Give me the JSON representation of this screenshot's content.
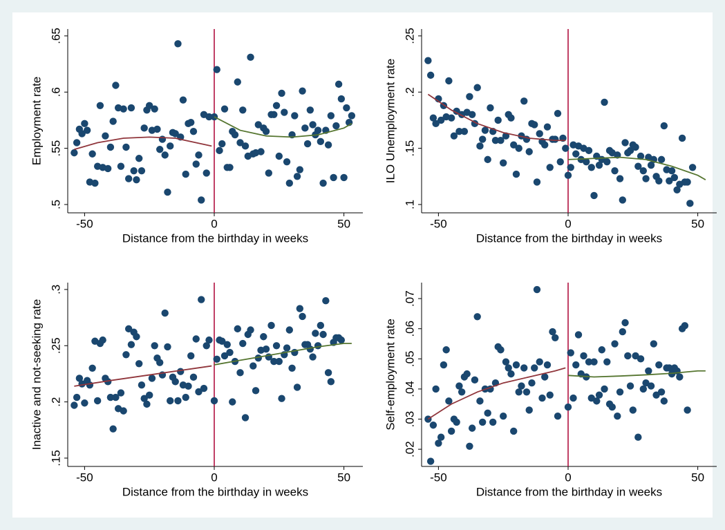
{
  "chart_data": [
    {
      "type": "scatter",
      "x_label": "Distance from the birthday in weeks",
      "y_label": "Employment rate",
      "xlim": [
        -56.5,
        57.3
      ],
      "ylim": [
        0.4926,
        0.6561
      ],
      "xticks": [
        -50,
        0,
        50
      ],
      "yticks": [
        {
          "value": 0.5,
          "label": ".5"
        },
        {
          "value": 0.55,
          "label": ".55"
        },
        {
          "value": 0.6,
          "label": ".6"
        },
        {
          "value": 0.65,
          "label": ".65"
        }
      ],
      "color": "#1a476f",
      "vline": 0,
      "vline_color": "#b0103f",
      "x": [
        -54,
        -53,
        -52,
        -51,
        -50,
        -49,
        -48,
        -47,
        -46,
        -45,
        -44,
        -43,
        -42,
        -41,
        -40,
        -39,
        -38,
        -37,
        -36,
        -35,
        -34,
        -33,
        -32,
        -31,
        -30,
        -29,
        -28,
        -27,
        -26,
        -25,
        -24,
        -23,
        -22,
        -21,
        -20,
        -19,
        -18,
        -17,
        -16,
        -15,
        -14,
        -13,
        -12,
        -11,
        -10,
        -9,
        -8,
        -7,
        -6,
        -5,
        -4,
        -3,
        -2,
        0,
        1,
        2,
        3,
        4,
        5,
        6,
        7,
        8,
        9,
        10,
        11,
        12,
        13,
        14,
        15,
        16,
        17,
        18,
        19,
        20,
        21,
        22,
        23,
        24,
        25,
        26,
        27,
        28,
        29,
        30,
        31,
        32,
        33,
        34,
        35,
        36,
        37,
        38,
        39,
        40,
        41,
        42,
        43,
        44,
        45,
        46,
        47,
        48,
        49,
        50,
        51,
        52,
        53
      ],
      "values": [
        0.546,
        0.555,
        0.567,
        0.563,
        0.572,
        0.566,
        0.52,
        0.545,
        0.519,
        0.534,
        0.588,
        0.533,
        0.561,
        0.532,
        0.551,
        0.574,
        0.606,
        0.586,
        0.534,
        0.585,
        0.551,
        0.523,
        0.586,
        0.53,
        0.522,
        0.541,
        0.53,
        0.568,
        0.584,
        0.588,
        0.566,
        0.585,
        0.567,
        0.549,
        0.558,
        0.544,
        0.511,
        0.552,
        0.564,
        0.563,
        0.643,
        0.56,
        0.593,
        0.527,
        0.572,
        0.573,
        0.565,
        0.536,
        0.544,
        0.504,
        0.58,
        0.528,
        0.578,
        0.578,
        0.62,
        0.548,
        0.554,
        0.585,
        0.533,
        0.533,
        0.565,
        0.562,
        0.609,
        0.555,
        0.584,
        0.552,
        0.543,
        0.631,
        0.545,
        0.546,
        0.571,
        0.547,
        0.568,
        0.565,
        0.528,
        0.58,
        0.58,
        0.588,
        0.543,
        0.599,
        0.582,
        0.538,
        0.519,
        0.562,
        0.579,
        0.525,
        0.531,
        0.601,
        0.568,
        0.554,
        0.584,
        0.571,
        0.562,
        0.566,
        0.556,
        0.519,
        0.566,
        0.553,
        0.579,
        0.524,
        0.57,
        0.607,
        0.594,
        0.524,
        0.586,
        0.573,
        0.579
      ],
      "fits": [
        {
          "color": "#90353b",
          "x": [
            -54,
            -45,
            -35,
            -25,
            -15,
            -5,
            -1
          ],
          "values": [
            0.549,
            0.555,
            0.559,
            0.56,
            0.559,
            0.554,
            0.552
          ]
        },
        {
          "color": "#55752f",
          "x": [
            0,
            10,
            20,
            30,
            40,
            50,
            53
          ],
          "values": [
            0.578,
            0.566,
            0.561,
            0.56,
            0.562,
            0.568,
            0.572
          ]
        }
      ]
    },
    {
      "type": "scatter",
      "x_label": "Distance from the birthday in weeks",
      "y_label": "ILO Unemployment rate",
      "xlim": [
        -56.5,
        57.3
      ],
      "ylim": [
        0.0926,
        0.2561
      ],
      "xticks": [
        -50,
        0,
        50
      ],
      "yticks": [
        {
          "value": 0.1,
          "label": ".1"
        },
        {
          "value": 0.15,
          "label": ".15"
        },
        {
          "value": 0.2,
          "label": ".2"
        },
        {
          "value": 0.25,
          "label": ".25"
        }
      ],
      "color": "#1a476f",
      "vline": 0,
      "vline_color": "#b0103f",
      "x": [
        -54,
        -53,
        -52,
        -51,
        -50,
        -49,
        -48,
        -47,
        -46,
        -45,
        -44,
        -43,
        -42,
        -41,
        -40,
        -39,
        -38,
        -37,
        -36,
        -35,
        -34,
        -33,
        -32,
        -31,
        -30,
        -29,
        -28,
        -27,
        -26,
        -25,
        -24,
        -23,
        -22,
        -21,
        -20,
        -19,
        -18,
        -17,
        -16,
        -15,
        -14,
        -13,
        -12,
        -11,
        -10,
        -9,
        -8,
        -7,
        -6,
        -5,
        -4,
        -3,
        -2,
        -1,
        0,
        1,
        2,
        3,
        4,
        5,
        6,
        7,
        8,
        9,
        10,
        11,
        12,
        13,
        14,
        15,
        16,
        17,
        18,
        19,
        20,
        21,
        22,
        23,
        24,
        25,
        26,
        27,
        28,
        29,
        30,
        31,
        32,
        33,
        34,
        35,
        36,
        37,
        38,
        39,
        40,
        41,
        42,
        43,
        44,
        45,
        46,
        47,
        48
      ],
      "values": [
        0.228,
        0.215,
        0.177,
        0.172,
        0.194,
        0.175,
        0.188,
        0.178,
        0.21,
        0.177,
        0.161,
        0.183,
        0.165,
        0.18,
        0.165,
        0.182,
        0.196,
        0.18,
        0.172,
        0.204,
        0.152,
        0.158,
        0.166,
        0.14,
        0.186,
        0.165,
        0.157,
        0.175,
        0.157,
        0.137,
        0.161,
        0.18,
        0.177,
        0.153,
        0.127,
        0.15,
        0.161,
        0.192,
        0.158,
        0.147,
        0.172,
        0.171,
        0.12,
        0.163,
        0.156,
        0.153,
        0.169,
        0.133,
        0.158,
        0.158,
        0.181,
        0.138,
        0.159,
        0.15,
        0.126,
        0.133,
        0.153,
        0.145,
        0.152,
        0.14,
        0.15,
        0.138,
        0.148,
        0.133,
        0.108,
        0.143,
        0.135,
        0.14,
        0.191,
        0.138,
        0.148,
        0.146,
        0.13,
        0.144,
        0.123,
        0.104,
        0.155,
        0.146,
        0.148,
        0.153,
        0.151,
        0.134,
        0.143,
        0.13,
        0.123,
        0.142,
        0.135,
        0.14,
        0.125,
        0.121,
        0.14,
        0.17,
        0.131,
        0.121,
        0.13,
        0.124,
        0.113,
        0.118,
        0.159,
        0.12,
        0.12,
        0.101,
        0.133
      ],
      "fits": [
        {
          "color": "#90353b",
          "x": [
            -54,
            -45,
            -35,
            -25,
            -15,
            -5,
            -1
          ],
          "values": [
            0.198,
            0.184,
            0.172,
            0.164,
            0.159,
            0.157,
            0.157
          ]
        },
        {
          "color": "#55752f",
          "x": [
            0,
            10,
            20,
            30,
            40,
            50,
            53
          ],
          "values": [
            0.14,
            0.141,
            0.142,
            0.14,
            0.134,
            0.126,
            0.122
          ]
        }
      ]
    },
    {
      "type": "scatter",
      "x_label": "Distance from the birthday in weeks",
      "y_label": "Inactive and not-seeking rate",
      "xlim": [
        -56.5,
        57.3
      ],
      "ylim": [
        0.1426,
        0.3061
      ],
      "xticks": [
        -50,
        0,
        50
      ],
      "yticks": [
        {
          "value": 0.15,
          "label": ".15"
        },
        {
          "value": 0.2,
          "label": ".2"
        },
        {
          "value": 0.25,
          "label": ".25"
        },
        {
          "value": 0.3,
          "label": ".3"
        }
      ],
      "color": "#1a476f",
      "vline": 0,
      "vline_color": "#b0103f",
      "x": [
        -54,
        -53,
        -52,
        -51,
        -50,
        -49,
        -48,
        -47,
        -46,
        -45,
        -44,
        -43,
        -42,
        -41,
        -40,
        -39,
        -38,
        -37,
        -36,
        -35,
        -34,
        -33,
        -32,
        -31,
        -30,
        -29,
        -28,
        -27,
        -26,
        -25,
        -24,
        -23,
        -22,
        -21,
        -20,
        -19,
        -18,
        -17,
        -16,
        -15,
        -14,
        -13,
        -12,
        -11,
        -10,
        -9,
        -8,
        -7,
        -6,
        -5,
        -4,
        -3,
        -2,
        0,
        1,
        2,
        3,
        4,
        5,
        6,
        7,
        8,
        9,
        10,
        11,
        12,
        13,
        14,
        15,
        16,
        17,
        18,
        19,
        20,
        21,
        22,
        23,
        24,
        25,
        26,
        27,
        28,
        29,
        30,
        31,
        32,
        33,
        34,
        35,
        36,
        37,
        38,
        39,
        40,
        41,
        42,
        43,
        44,
        45,
        46,
        47,
        48,
        49
      ],
      "values": [
        0.197,
        0.204,
        0.221,
        0.216,
        0.199,
        0.219,
        0.215,
        0.23,
        0.254,
        0.201,
        0.252,
        0.255,
        0.221,
        0.218,
        0.204,
        0.176,
        0.204,
        0.194,
        0.208,
        0.192,
        0.242,
        0.265,
        0.251,
        0.262,
        0.258,
        0.234,
        0.215,
        0.203,
        0.198,
        0.206,
        0.221,
        0.25,
        0.239,
        0.235,
        0.224,
        0.279,
        0.249,
        0.201,
        0.222,
        0.218,
        0.201,
        0.227,
        0.215,
        0.204,
        0.214,
        0.241,
        0.222,
        0.256,
        0.209,
        0.291,
        0.212,
        0.25,
        0.255,
        0.201,
        0.238,
        0.255,
        0.254,
        0.241,
        0.251,
        0.244,
        0.2,
        0.236,
        0.265,
        0.226,
        0.252,
        0.186,
        0.26,
        0.264,
        0.232,
        0.21,
        0.239,
        0.246,
        0.258,
        0.247,
        0.24,
        0.268,
        0.236,
        0.25,
        0.236,
        0.203,
        0.242,
        0.248,
        0.264,
        0.23,
        0.244,
        0.213,
        0.283,
        0.276,
        0.251,
        0.251,
        0.247,
        0.24,
        0.261,
        0.25,
        0.268,
        0.26,
        0.29,
        0.226,
        0.218,
        0.253,
        0.257,
        0.257,
        0.255
      ],
      "fits": [
        {
          "color": "#90353b",
          "x": [
            -54,
            -40,
            -25,
            -10,
            -1
          ],
          "values": [
            0.214,
            0.219,
            0.224,
            0.229,
            0.232
          ]
        },
        {
          "color": "#55752f",
          "x": [
            0,
            10,
            20,
            30,
            40,
            50,
            53
          ],
          "values": [
            0.233,
            0.237,
            0.241,
            0.245,
            0.249,
            0.252,
            0.252
          ]
        }
      ]
    },
    {
      "type": "scatter",
      "x_label": "Distance from the birthday in weeks",
      "y_label": "Self-employment rate",
      "xlim": [
        -56.5,
        57.3
      ],
      "ylim": [
        0.0143,
        0.0753
      ],
      "xticks": [
        -50,
        0,
        50
      ],
      "yticks": [
        {
          "value": 0.02,
          "label": ".02"
        },
        {
          "value": 0.03,
          "label": ".03"
        },
        {
          "value": 0.04,
          "label": ".04"
        },
        {
          "value": 0.05,
          "label": ".05"
        },
        {
          "value": 0.06,
          "label": ".06"
        },
        {
          "value": 0.07,
          "label": ".07"
        }
      ],
      "color": "#1a476f",
      "vline": 0,
      "vline_color": "#b0103f",
      "x": [
        -54,
        -53,
        -52,
        -51,
        -50,
        -49,
        -48,
        -47,
        -46,
        -45,
        -44,
        -43,
        -42,
        -41,
        -40,
        -39,
        -38,
        -37,
        -36,
        -35,
        -34,
        -33,
        -32,
        -31,
        -30,
        -29,
        -28,
        -27,
        -26,
        -25,
        -24,
        -23,
        -22,
        -21,
        -20,
        -19,
        -18,
        -17,
        -16,
        -15,
        -14,
        -13,
        -12,
        -11,
        -10,
        -9,
        -8,
        -7,
        -6,
        -5,
        -4,
        0,
        1,
        2,
        3,
        4,
        5,
        6,
        7,
        8,
        9,
        10,
        11,
        12,
        13,
        14,
        15,
        16,
        17,
        18,
        19,
        20,
        21,
        22,
        23,
        24,
        25,
        26,
        27,
        28,
        29,
        30,
        31,
        32,
        33,
        34,
        35,
        36,
        37,
        38,
        39,
        40,
        41,
        42,
        43,
        44,
        45,
        46
      ],
      "values": [
        0.03,
        0.016,
        0.028,
        0.04,
        0.022,
        0.024,
        0.048,
        0.053,
        0.036,
        0.026,
        0.03,
        0.029,
        0.041,
        0.039,
        0.044,
        0.045,
        0.021,
        0.027,
        0.043,
        0.064,
        0.036,
        0.029,
        0.04,
        0.032,
        0.04,
        0.029,
        0.042,
        0.054,
        0.053,
        0.031,
        0.049,
        0.047,
        0.045,
        0.026,
        0.048,
        0.039,
        0.041,
        0.047,
        0.039,
        0.033,
        0.042,
        0.047,
        0.073,
        0.049,
        0.037,
        0.044,
        0.048,
        0.038,
        0.059,
        0.057,
        0.031,
        0.034,
        0.052,
        0.037,
        0.048,
        0.058,
        0.045,
        0.051,
        0.044,
        0.049,
        0.037,
        0.049,
        0.036,
        0.038,
        0.053,
        0.04,
        0.049,
        0.035,
        0.034,
        0.055,
        0.031,
        0.039,
        0.059,
        0.062,
        0.051,
        0.041,
        0.033,
        0.051,
        0.024,
        0.05,
        0.04,
        0.042,
        0.046,
        0.041,
        0.055,
        0.038,
        0.048,
        0.039,
        0.036,
        0.047,
        0.047,
        0.045,
        0.047,
        0.046,
        0.044,
        0.06,
        0.061,
        0.033
      ],
      "fits": [
        {
          "color": "#90353b",
          "x": [
            -54,
            -45,
            -35,
            -25,
            -15,
            -5,
            -1
          ],
          "values": [
            0.03,
            0.035,
            0.039,
            0.042,
            0.044,
            0.046,
            0.047
          ]
        },
        {
          "color": "#55752f",
          "x": [
            0,
            10,
            20,
            30,
            40,
            50,
            53
          ],
          "values": [
            0.0445,
            0.044,
            0.0443,
            0.0447,
            0.0452,
            0.046,
            0.046
          ]
        }
      ]
    }
  ]
}
